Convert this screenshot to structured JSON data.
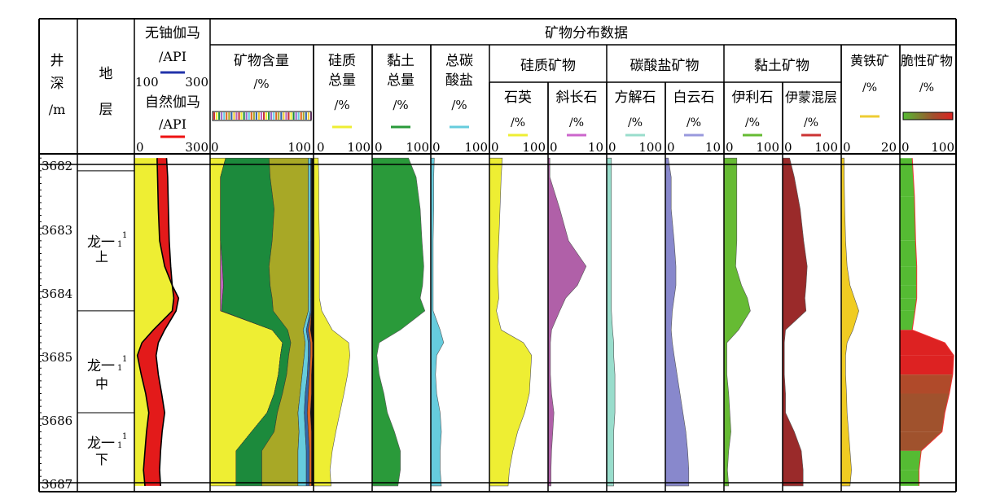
{
  "header": {
    "depth": [
      "井",
      "深",
      "/m"
    ],
    "formation": [
      "地",
      "层"
    ],
    "gr_uranium_free": {
      "name": "无铀伽马",
      "unit": "/API",
      "min": "100",
      "max": "300",
      "color": "#2233aa"
    },
    "gr_natural": {
      "name": "自然伽马",
      "unit": "/API",
      "min": "0",
      "max": "300",
      "color": "#ee1111"
    },
    "group_title": "矿物分布数据",
    "mineral_content": {
      "name": "矿物含量",
      "unit": "/%",
      "min": "0",
      "max": "100"
    },
    "siliceous_total": {
      "name": [
        "硅质",
        "总量"
      ],
      "unit": "/%",
      "min": "0",
      "max": "100",
      "color": "#eeee33"
    },
    "clay_total": {
      "name": [
        "黏土",
        "总量"
      ],
      "unit": "/%",
      "min": "0",
      "max": "100",
      "color": "#2a9a3a"
    },
    "carbonate_total": {
      "name": [
        "总碳",
        "酸盐"
      ],
      "unit": "/%",
      "min": "0",
      "max": "100",
      "color": "#66ccdd"
    },
    "siliceous_minerals": {
      "name": "硅质矿物",
      "quartz": {
        "name": "石英",
        "unit": "/%",
        "min": "0",
        "max": "100",
        "color": "#eeee33"
      },
      "plagioclase": {
        "name": "斜长石",
        "unit": "/%",
        "min": "0",
        "max": "10",
        "color": "#cc66cc"
      }
    },
    "carbonate_minerals": {
      "name": "碳酸盐矿物",
      "calcite": {
        "name": "方解石",
        "unit": "/%",
        "min": "0",
        "max": "100",
        "color": "#99ddcc"
      },
      "dolomite": {
        "name": "白云石",
        "unit": "/%",
        "min": "0",
        "max": "10",
        "color": "#9999dd"
      }
    },
    "clay_minerals": {
      "name": "黏土矿物",
      "illite": {
        "name": "伊利石",
        "unit": "/%",
        "min": "0",
        "max": "100",
        "color": "#66bb33"
      },
      "illite_smectite": {
        "name": "伊蒙混层",
        "unit": "/%",
        "min": "0",
        "max": "100",
        "color": "#cc3333"
      }
    },
    "pyrite": {
      "name": "黄铁矿",
      "unit": "/%",
      "min": "0",
      "max": "20",
      "color": "#eecc33"
    },
    "brittle": {
      "name": "脆性矿物",
      "unit": "/%",
      "min": "0",
      "max": "100"
    }
  },
  "depth_labels": [
    "3682",
    "3683",
    "3684",
    "3685",
    "3686",
    "3687"
  ],
  "formation_zones": [
    {
      "main": "龙一",
      "sup": "1",
      "sub": "1",
      "pos": "上"
    },
    {
      "main": "龙一",
      "sup": "1",
      "sub": "1",
      "pos": "中"
    },
    {
      "main": "龙一",
      "sup": "1",
      "sub": "1",
      "pos": "下"
    }
  ],
  "chart_data": {
    "type": "area",
    "y_axis": {
      "name": "depth",
      "unit": "m",
      "range": [
        3681.9,
        3687.05
      ],
      "reversed": true
    },
    "depth": [
      3681.9,
      3682.2,
      3682.7,
      3683.2,
      3683.6,
      3683.9,
      3684.1,
      3684.3,
      3684.6,
      3684.8,
      3685.0,
      3685.3,
      3685.6,
      3685.9,
      3686.2,
      3686.5,
      3686.8,
      3687.05
    ],
    "formation_boundaries": [
      3681.9,
      3684.3,
      3685.9,
      3687.05
    ],
    "curves": {
      "uranium_free_gr": [
        185,
        188,
        190,
        192,
        196,
        200,
        204,
        200,
        150,
        120,
        108,
        118,
        130,
        138,
        132,
        128,
        124,
        128
      ],
      "natural_gr": [
        90,
        92,
        95,
        100,
        120,
        150,
        175,
        165,
        120,
        95,
        86,
        95,
        108,
        120,
        110,
        104,
        100,
        104
      ],
      "siliceous_total": [
        8,
        9,
        9,
        10,
        10,
        10,
        10,
        14,
        32,
        60,
        62,
        58,
        52,
        45,
        38,
        32,
        28,
        30
      ],
      "clay_total": [
        62,
        75,
        82,
        85,
        88,
        86,
        82,
        90,
        48,
        12,
        8,
        12,
        20,
        26,
        38,
        48,
        48,
        44
      ],
      "carbonate_total": [
        6,
        5,
        5,
        4,
        4,
        4,
        4,
        4,
        16,
        22,
        10,
        8,
        10,
        16,
        18,
        16,
        16,
        18
      ],
      "quartz": [
        22,
        20,
        18,
        16,
        14,
        15,
        16,
        12,
        20,
        58,
        72,
        70,
        68,
        60,
        48,
        40,
        34,
        32
      ],
      "plagioclase": [
        0.3,
        0.3,
        2,
        3.5,
        6.5,
        5,
        3,
        2,
        0.6,
        0.4,
        0.4,
        0.4,
        0.6,
        1,
        0.8,
        0.6,
        0.5,
        0.5
      ],
      "calcite": [
        8,
        8,
        8,
        8,
        8,
        8,
        8,
        8,
        10,
        12,
        12,
        14,
        14,
        14,
        12,
        12,
        12,
        12
      ],
      "dolomite": [
        0.5,
        1,
        1,
        1.5,
        1.8,
        1.8,
        1.5,
        1.2,
        1,
        1.2,
        1.5,
        2,
        2.5,
        3,
        3.5,
        3.8,
        4,
        4
      ],
      "illite": [
        22,
        22,
        22,
        22,
        20,
        30,
        40,
        45,
        25,
        5,
        5,
        5,
        8,
        10,
        12,
        8,
        6,
        8
      ],
      "illite_smectite": [
        12,
        20,
        30,
        36,
        42,
        40,
        38,
        40,
        5,
        3,
        3,
        3,
        5,
        5,
        20,
        32,
        35,
        35
      ],
      "pyrite": [
        1,
        1,
        1.2,
        1.5,
        2,
        3,
        4.5,
        6,
        4,
        2,
        1.5,
        1.5,
        1.8,
        2,
        2.5,
        3,
        3.5,
        3
      ]
    },
    "mineral_stack": {
      "components": [
        {
          "name": "石英",
          "color": "#eeee33",
          "values": [
            15,
            10,
            10,
            10,
            10,
            10,
            10,
            10,
            60,
            70,
            68,
            66,
            62,
            55,
            40,
            25,
            25,
            25
          ]
        },
        {
          "name": "斜长石",
          "color": "#bb66bb",
          "values": [
            0,
            0,
            0,
            0,
            2,
            3,
            2,
            1,
            0,
            0,
            0,
            0,
            0,
            0,
            0,
            0,
            0,
            0
          ]
        },
        {
          "name": "伊利石",
          "color": "#1c8a3c",
          "values": [
            42,
            48,
            52,
            50,
            45,
            45,
            48,
            50,
            15,
            8,
            8,
            8,
            8,
            10,
            22,
            25,
            25,
            25
          ]
        },
        {
          "name": "伊蒙混层",
          "color": "#a8a826",
          "values": [
            38,
            37,
            33,
            35,
            38,
            37,
            35,
            34,
            15,
            14,
            15,
            15,
            17,
            20,
            24,
            35,
            35,
            35
          ]
        },
        {
          "name": "方解石",
          "color": "#66ccdd",
          "values": [
            2,
            2,
            2,
            2,
            2,
            2,
            2,
            2,
            3,
            3,
            4,
            5,
            5,
            6,
            6,
            8,
            8,
            8
          ]
        },
        {
          "name": "白云石",
          "color": "#3366aa",
          "values": [
            1,
            1,
            1,
            1,
            1,
            1,
            1,
            1,
            2,
            2,
            2,
            2,
            3,
            3,
            3,
            3,
            3,
            3
          ]
        },
        {
          "name": "黄铁矿",
          "color": "#dd6622",
          "values": [
            0,
            0,
            0,
            0,
            0,
            0,
            0,
            0,
            2,
            2,
            2,
            2,
            3,
            3,
            3,
            2,
            2,
            2
          ]
        }
      ],
      "remainder_color": "#111111"
    },
    "brittle_mineral": {
      "depth": [
        3681.9,
        3682.5,
        3683.2,
        3683.6,
        3683.9,
        3684.1,
        3684.3,
        3684.6,
        3684.8,
        3685.0,
        3685.3,
        3685.6,
        3685.9,
        3686.2,
        3686.5,
        3686.8,
        3687.05
      ],
      "values": [
        22,
        26,
        28,
        30,
        30,
        30,
        27,
        22,
        80,
        96,
        94,
        88,
        80,
        75,
        38,
        34,
        34
      ],
      "segment_colors": [
        "#55bb33",
        "#55bb33",
        "#55bb33",
        "#55bb33",
        "#55bb33",
        "#55bb33",
        "#55bb33",
        "#dd2222",
        "#dd2222",
        "#dd2222",
        "#b04a2a",
        "#a0522d",
        "#a0522d",
        "#a0522d",
        "#55bb33",
        "#55bb33"
      ]
    }
  }
}
